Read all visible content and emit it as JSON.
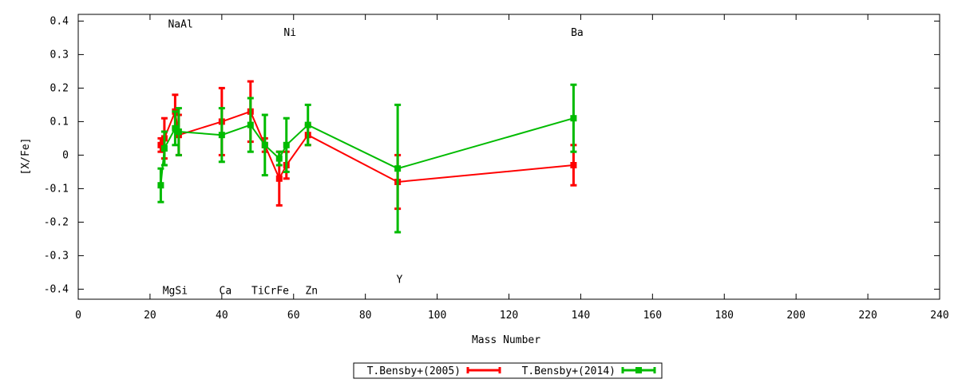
{
  "chart_data": {
    "type": "line",
    "title": "",
    "xlabel": "Mass Number",
    "ylabel": "[X/Fe]",
    "xlim": [
      0,
      240
    ],
    "ylim": [
      -0.43,
      0.42
    ],
    "xticks": [
      0,
      20,
      40,
      60,
      80,
      100,
      120,
      140,
      160,
      180,
      200,
      220,
      240
    ],
    "yticks": [
      -0.4,
      -0.3,
      -0.2,
      -0.1,
      0,
      0.1,
      0.2,
      0.3,
      0.4
    ],
    "xtick_labels": [
      "0",
      "20",
      "40",
      "60",
      "80",
      "100",
      "120",
      "140",
      "160",
      "180",
      "200",
      "220",
      "240"
    ],
    "ytick_labels": [
      "-0.4",
      "-0.3",
      "-0.2",
      "-0.1",
      "0",
      "0.1",
      "0.2",
      "0.3",
      "0.4"
    ],
    "grid": false,
    "legend_position": "bottom",
    "series": [
      {
        "name": "T.Bensby+(2005)",
        "color": "#ff0000",
        "x": [
          23,
          24,
          27,
          28,
          40,
          48,
          52,
          56,
          58,
          64,
          89,
          138
        ],
        "y": [
          0.03,
          0.05,
          0.13,
          0.06,
          0.1,
          0.13,
          0.03,
          -0.07,
          -0.03,
          0.06,
          -0.08,
          -0.03
        ],
        "err": [
          0.02,
          0.06,
          0.05,
          0.06,
          0.1,
          0.09,
          0.02,
          0.08,
          0.04,
          0.03,
          0.08,
          0.06
        ]
      },
      {
        "name": "T.Bensby+(2014)",
        "color": "#00bb00",
        "x": [
          23,
          24,
          27,
          28,
          40,
          48,
          52,
          56,
          58,
          64,
          89,
          138
        ],
        "y": [
          -0.09,
          0.02,
          0.08,
          0.07,
          0.06,
          0.09,
          0.03,
          -0.01,
          0.03,
          0.09,
          -0.04,
          0.11
        ],
        "err": [
          0.05,
          0.05,
          0.05,
          0.07,
          0.08,
          0.08,
          0.09,
          0.02,
          0.08,
          0.06,
          0.19,
          0.1
        ]
      }
    ],
    "annotations": [
      {
        "text": "NaAl",
        "x": 28.5,
        "y": 0.39
      },
      {
        "text": "Ni",
        "x": 59,
        "y": 0.365
      },
      {
        "text": "Ba",
        "x": 139,
        "y": 0.365
      },
      {
        "text": "MgSi",
        "x": 27,
        "y": -0.405
      },
      {
        "text": "Ca",
        "x": 41,
        "y": -0.405
      },
      {
        "text": "TiCrFe",
        "x": 53.5,
        "y": -0.405
      },
      {
        "text": "Zn",
        "x": 65,
        "y": -0.405
      },
      {
        "text": "Y",
        "x": 89.5,
        "y": -0.372
      }
    ]
  }
}
